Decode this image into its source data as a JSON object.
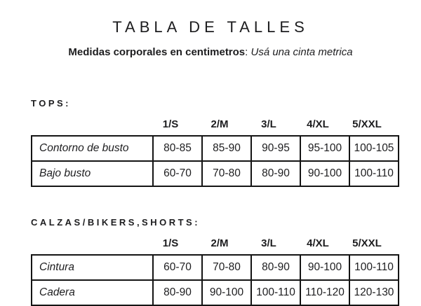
{
  "title": "TABLA DE TALLES",
  "subtitle": {
    "bold": "Medidas corporales en centimetros",
    "separator": ": ",
    "italic": "Usá una cinta metrica"
  },
  "sizes": [
    "1/S",
    "2/M",
    "3/L",
    "4/XL",
    "5/XXL"
  ],
  "sections": [
    {
      "heading": "TOPS:",
      "rows": [
        {
          "label": "Contorno de busto",
          "values": [
            "80-85",
            "85-90",
            "90-95",
            "95-100",
            "100-105"
          ]
        },
        {
          "label": "Bajo busto",
          "values": [
            "60-70",
            "70-80",
            "80-90",
            "90-100",
            "100-110"
          ]
        }
      ]
    },
    {
      "heading": "CALZAS/BIKERS,SHORTS:",
      "rows": [
        {
          "label": "Cintura",
          "values": [
            "60-70",
            "70-80",
            "80-90",
            "90-100",
            "100-110"
          ]
        },
        {
          "label": "Cadera",
          "values": [
            "80-90",
            "90-100",
            "100-110",
            "110-120",
            "120-130"
          ]
        }
      ]
    }
  ],
  "colors": {
    "background": "#ffffff",
    "text": "#1d1d1f",
    "border": "#141414"
  }
}
